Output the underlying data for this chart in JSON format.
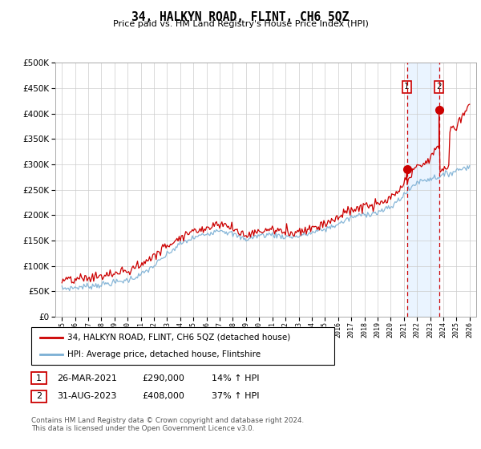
{
  "title": "34, HALKYN ROAD, FLINT, CH6 5QZ",
  "subtitle": "Price paid vs. HM Land Registry's House Price Index (HPI)",
  "footer": "Contains HM Land Registry data © Crown copyright and database right 2024.\nThis data is licensed under the Open Government Licence v3.0.",
  "legend_line1": "34, HALKYN ROAD, FLINT, CH6 5QZ (detached house)",
  "legend_line2": "HPI: Average price, detached house, Flintshire",
  "annotation1_date": "26-MAR-2021",
  "annotation1_price": "£290,000",
  "annotation1_hpi": "14% ↑ HPI",
  "annotation2_date": "31-AUG-2023",
  "annotation2_price": "£408,000",
  "annotation2_hpi": "37% ↑ HPI",
  "hpi_color": "#7bafd4",
  "price_color": "#cc0000",
  "annotation_color": "#cc0000",
  "background_color": "#ffffff",
  "grid_color": "#cccccc",
  "ylim": [
    0,
    500000
  ],
  "yticks": [
    0,
    50000,
    100000,
    150000,
    200000,
    250000,
    300000,
    350000,
    400000,
    450000,
    500000
  ],
  "marker1_year": 2021.23,
  "marker1_price": 290000,
  "marker2_year": 2023.67,
  "marker2_price": 408000
}
